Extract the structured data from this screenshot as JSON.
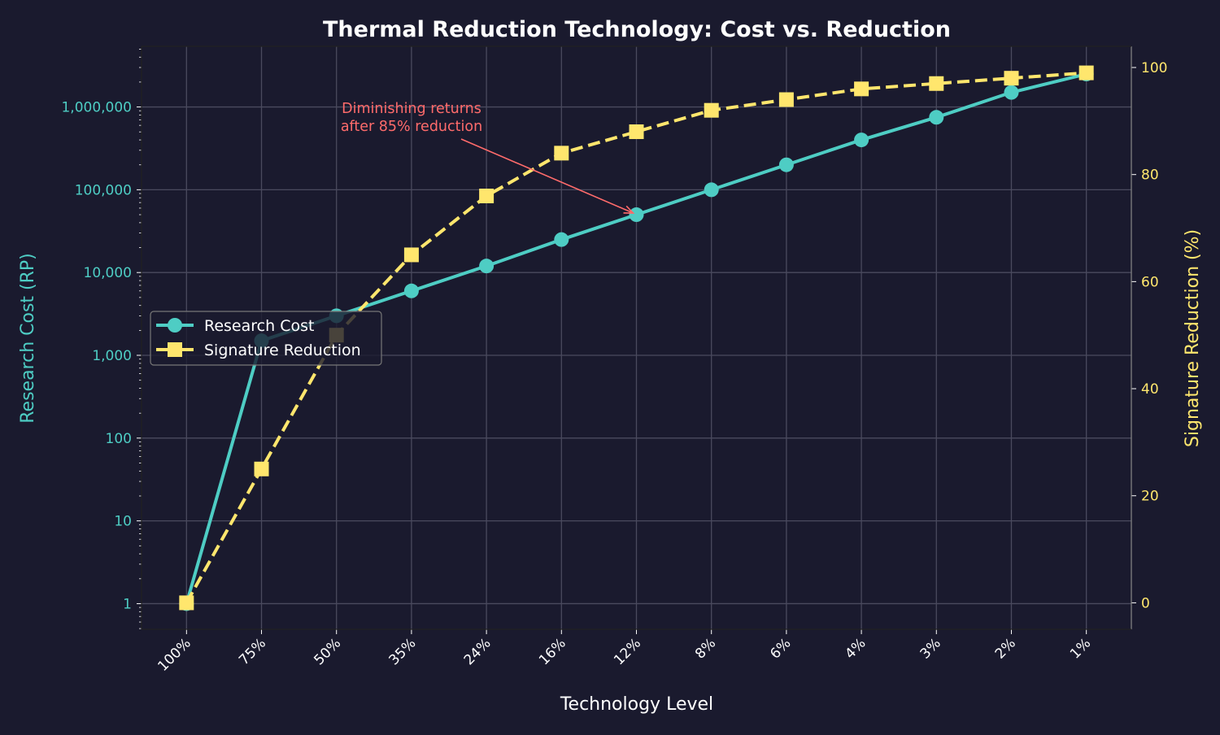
{
  "chart_data": {
    "type": "line",
    "title": "Thermal Reduction Technology: Cost vs. Reduction",
    "xlabel": "Technology Level",
    "ylabel_left": "Research Cost (RP)",
    "ylabel_right": "Signature Reduction (%)",
    "categories": [
      "100%",
      "75%",
      "50%",
      "35%",
      "24%",
      "16%",
      "12%",
      "8%",
      "6%",
      "4%",
      "3%",
      "2%",
      "1%"
    ],
    "y_left_scale": "log",
    "y_left_range": [
      0.49,
      5400000
    ],
    "y_left_ticks": [
      1,
      10,
      100,
      1000,
      10000,
      100000,
      1000000
    ],
    "y_left_tick_labels": [
      "1",
      "10",
      "100",
      "1,000",
      "10,000",
      "100,000",
      "1,000,000"
    ],
    "y_right_range": [
      -4.95,
      103.95
    ],
    "y_right_ticks": [
      0,
      20,
      40,
      60,
      80,
      100
    ],
    "y_right_tick_labels": [
      "0",
      "20",
      "40",
      "60",
      "80",
      "100"
    ],
    "grid": true,
    "legend_position": "center-left",
    "series": [
      {
        "name": "Research Cost",
        "axis": "left",
        "color": "#4ecdc4",
        "marker": "circle",
        "line": "solid",
        "values": [
          1,
          1500,
          3000,
          6000,
          12000,
          25000,
          50000,
          100000,
          200000,
          400000,
          750000,
          1500000,
          2500000
        ]
      },
      {
        "name": "Signature Reduction",
        "axis": "right",
        "color": "#ffe66d",
        "marker": "square",
        "line": "dashed",
        "values": [
          0,
          25,
          50,
          65,
          76,
          84,
          88,
          92,
          94,
          96,
          97,
          98,
          99
        ]
      }
    ],
    "annotation": {
      "lines": [
        "Diminishing returns",
        "after 85% reduction"
      ],
      "color": "#ff6b6b",
      "points_to_category": "12%",
      "points_to_value": 50000
    }
  },
  "colors": {
    "background": "#1a1a2e",
    "grid": "#4a4a5e",
    "text": "#ffffff"
  }
}
